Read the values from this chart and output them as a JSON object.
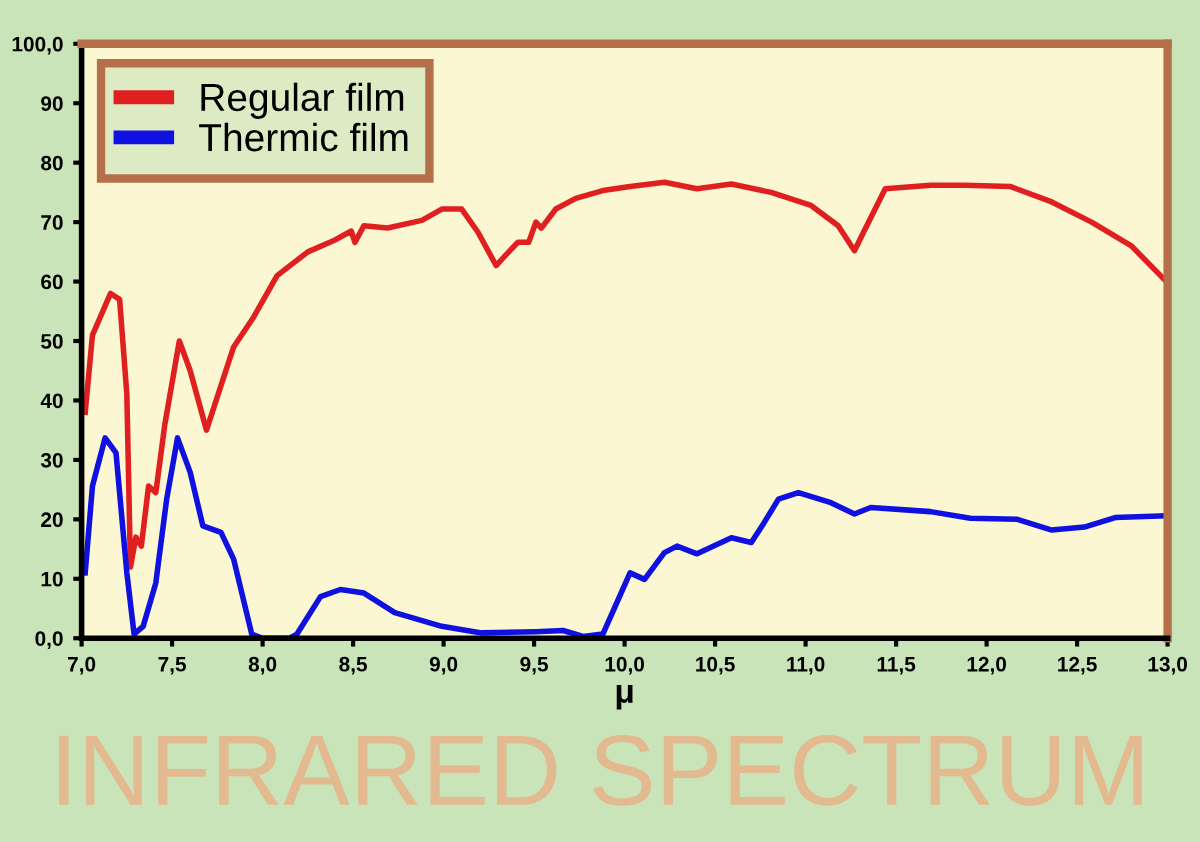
{
  "chart_data": {
    "type": "line",
    "title": "INFRARED SPECTRUM",
    "xlabel": "μ",
    "xlim": [
      7,
      13
    ],
    "xticks": [
      {
        "value": 7,
        "label": "7,0"
      },
      {
        "value": 7.5,
        "label": "7,5"
      },
      {
        "value": 8,
        "label": "8,0"
      },
      {
        "value": 8.5,
        "label": "8,5"
      },
      {
        "value": 9,
        "label": "9,0"
      },
      {
        "value": 9.5,
        "label": "9,5"
      },
      {
        "value": 10,
        "label": "10,0"
      },
      {
        "value": 10.5,
        "label": "10,5"
      },
      {
        "value": 11,
        "label": "11,0"
      },
      {
        "value": 11.5,
        "label": "11,5"
      },
      {
        "value": 12,
        "label": "12,0"
      },
      {
        "value": 12.5,
        "label": "12,5"
      },
      {
        "value": 13,
        "label": "13,0"
      }
    ],
    "ylim": [
      0,
      100
    ],
    "yticks": [
      {
        "value": 0,
        "label": "0,0"
      },
      10,
      20,
      30,
      40,
      50,
      60,
      70,
      80,
      90,
      {
        "value": 100,
        "label": "100,0"
      }
    ],
    "grid": false,
    "legend": "top left",
    "marker": "none",
    "line_style": "solid",
    "series": [
      {
        "name": "Regular film",
        "color": "#e02020",
        "x": [
          7.02,
          7.06,
          7.16,
          7.21,
          7.25,
          7.27,
          7.3,
          7.33,
          7.37,
          7.41,
          7.46,
          7.54,
          7.6,
          7.69,
          7.77,
          7.84,
          7.95,
          8.08,
          8.25,
          8.4,
          8.49,
          8.51,
          8.56,
          8.69,
          8.88,
          8.99,
          9.1,
          9.19,
          9.29,
          9.36,
          9.41,
          9.47,
          9.51,
          9.54,
          9.62,
          9.73,
          9.88,
          10.03,
          10.22,
          10.4,
          10.59,
          10.81,
          11.03,
          11.18,
          11.27,
          11.32,
          11.44,
          11.69,
          11.88,
          12.13,
          12.36,
          12.58,
          12.8,
          12.98
        ],
        "values": [
          38,
          51,
          58,
          57,
          41,
          12,
          17,
          15.5,
          25.6,
          24.5,
          36,
          50,
          45,
          35,
          42.5,
          49,
          54,
          61,
          65,
          67,
          68.5,
          66.6,
          69.4,
          69,
          70.3,
          72.2,
          72.2,
          68.3,
          62.7,
          65,
          66.6,
          66.6,
          70,
          69,
          72.2,
          74,
          75.3,
          76,
          76.7,
          75.6,
          76.4,
          75,
          72.8,
          69.4,
          65.2,
          68.3,
          75.6,
          76.2,
          76.2,
          76,
          73.4,
          70,
          66,
          60.4
        ]
      },
      {
        "name": "Thermic film",
        "color": "#1010e0",
        "x": [
          7.02,
          7.06,
          7.13,
          7.19,
          7.25,
          7.29,
          7.34,
          7.41,
          7.47,
          7.53,
          7.6,
          7.67,
          7.77,
          7.84,
          7.94,
          8.0,
          8.15,
          8.19,
          8.32,
          8.43,
          8.56,
          8.73,
          8.99,
          9.21,
          9.51,
          9.66,
          9.77,
          9.88,
          10.03,
          10.11,
          10.22,
          10.29,
          10.4,
          10.59,
          10.7,
          10.77,
          10.85,
          10.96,
          11.14,
          11.27,
          11.36,
          11.69,
          11.91,
          12.17,
          12.36,
          12.54,
          12.71,
          12.98
        ],
        "values": [
          11,
          25.6,
          33.7,
          31.2,
          11,
          0.7,
          2,
          9.3,
          23.4,
          33.7,
          27.9,
          18.9,
          17.8,
          13.3,
          0.7,
          0,
          0,
          0.7,
          7,
          8.2,
          7.6,
          4.3,
          2,
          0.9,
          1.1,
          1.3,
          0.3,
          0.7,
          11,
          9.9,
          14.4,
          15.5,
          14.2,
          16.9,
          16.1,
          19.4,
          23.4,
          24.5,
          22.8,
          20.9,
          22,
          21.3,
          20.2,
          20,
          18.2,
          18.7,
          20.3,
          20.6
        ]
      }
    ]
  }
}
